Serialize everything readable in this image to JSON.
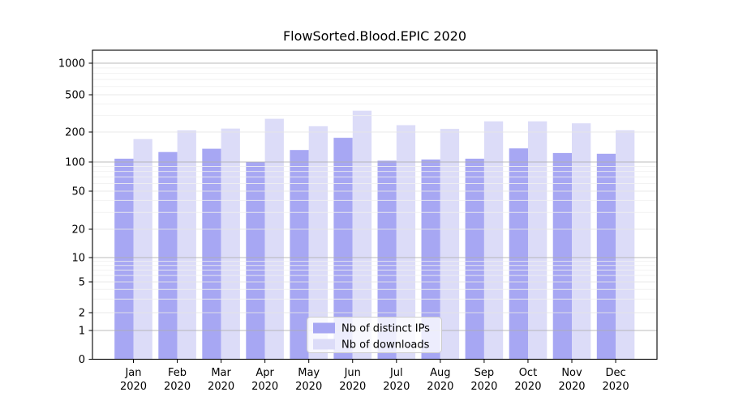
{
  "chart_data": {
    "type": "bar",
    "title": "FlowSorted.Blood.EPIC 2020",
    "categories": [
      "Jan",
      "Feb",
      "Mar",
      "Apr",
      "May",
      "Jun",
      "Jul",
      "Aug",
      "Sep",
      "Oct",
      "Nov",
      "Dec"
    ],
    "x_year": "2020",
    "series": [
      {
        "name": "Nb of distinct IPs",
        "color": "#a7a7f3",
        "values": [
          108,
          126,
          136,
          100,
          132,
          175,
          103,
          106,
          108,
          137,
          123,
          121
        ]
      },
      {
        "name": "Nb of downloads",
        "color": "#dcdcf8",
        "values": [
          170,
          208,
          218,
          277,
          231,
          338,
          237,
          216,
          260,
          260,
          248,
          209
        ]
      }
    ],
    "y_axis": {
      "scale": "symlog",
      "ticks": [
        0,
        1,
        2,
        5,
        10,
        20,
        50,
        100,
        200,
        500,
        1000
      ],
      "range": [
        0,
        1500
      ]
    },
    "x_axis": {
      "tick_label_format": "month over year, two lines"
    },
    "legend": {
      "position": "lower center",
      "entries": [
        "Nb of distinct IPs",
        "Nb of downloads"
      ]
    },
    "grid": "both",
    "grid_colors": {
      "major_power_of_ten": "#b0b0b0",
      "labeled_minor": "#e7e7e7",
      "unlabeled_minor": "#f0f0f0"
    }
  }
}
